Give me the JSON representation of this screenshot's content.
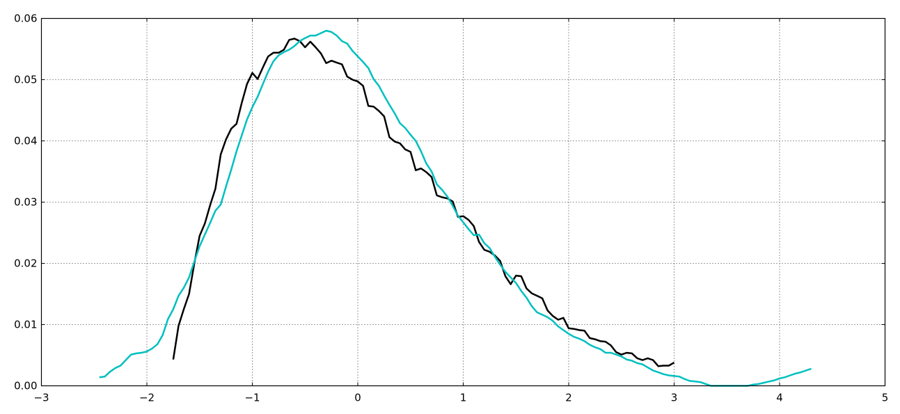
{
  "chart_data": {
    "type": "line",
    "title": "",
    "xlabel": "",
    "ylabel": "",
    "xlim": [
      -3,
      5
    ],
    "ylim": [
      0,
      0.06
    ],
    "grid": true,
    "xticks": [
      -3,
      -2,
      -1,
      0,
      1,
      2,
      3,
      4,
      5
    ],
    "xtick_labels": [
      "−3",
      "−2",
      "−1",
      "0",
      "1",
      "2",
      "3",
      "4",
      "5"
    ],
    "yticks": [
      0.0,
      0.01,
      0.02,
      0.03,
      0.04,
      0.05,
      0.06
    ],
    "ytick_labels": [
      "0.00",
      "0.01",
      "0.02",
      "0.03",
      "0.04",
      "0.05",
      "0.06"
    ],
    "series": [
      {
        "color": "#000000",
        "x": [
          -1.75,
          -1.7,
          -1.65,
          -1.6,
          -1.55,
          -1.5,
          -1.45,
          -1.4,
          -1.35,
          -1.3,
          -1.25,
          -1.2,
          -1.15,
          -1.1,
          -1.05,
          -1.0,
          -0.95,
          -0.9,
          -0.85,
          -0.8,
          -0.75,
          -0.7,
          -0.65,
          -0.6,
          -0.55,
          -0.5,
          -0.45,
          -0.4,
          -0.35,
          -0.3,
          -0.25,
          -0.2,
          -0.15,
          -0.1,
          -0.05,
          0.0,
          0.05,
          0.1,
          0.15,
          0.2,
          0.25,
          0.3,
          0.35,
          0.4,
          0.45,
          0.5,
          0.55,
          0.6,
          0.65,
          0.7,
          0.75,
          0.8,
          0.85,
          0.9,
          0.95,
          1.0,
          1.05,
          1.1,
          1.15,
          1.2,
          1.25,
          1.3,
          1.35,
          1.4,
          1.45,
          1.5,
          1.55,
          1.6,
          1.65,
          1.7,
          1.75,
          1.8,
          1.85,
          1.9,
          1.95,
          2.0,
          2.05,
          2.1,
          2.15,
          2.2,
          2.25,
          2.3,
          2.35,
          2.4,
          2.45,
          2.5,
          2.55,
          2.6,
          2.65,
          2.7,
          2.75,
          2.8,
          2.85,
          2.9,
          2.95,
          3.0
        ],
        "values": [
          0.0043,
          0.0098,
          0.0125,
          0.015,
          0.02,
          0.0245,
          0.0265,
          0.0295,
          0.0322,
          0.0378,
          0.0402,
          0.042,
          0.0428,
          0.0462,
          0.0493,
          0.0511,
          0.0501,
          0.052,
          0.0538,
          0.0544,
          0.0544,
          0.0549,
          0.0565,
          0.0567,
          0.0563,
          0.0553,
          0.0562,
          0.0553,
          0.0543,
          0.0527,
          0.0531,
          0.0528,
          0.0525,
          0.0505,
          0.05,
          0.0497,
          0.049,
          0.0457,
          0.0456,
          0.0449,
          0.044,
          0.0406,
          0.0399,
          0.0396,
          0.0386,
          0.0382,
          0.0352,
          0.0355,
          0.0349,
          0.0341,
          0.0311,
          0.0308,
          0.0306,
          0.0301,
          0.0276,
          0.0277,
          0.0271,
          0.0261,
          0.0235,
          0.0222,
          0.0219,
          0.0213,
          0.0204,
          0.0179,
          0.0166,
          0.018,
          0.0179,
          0.0159,
          0.0151,
          0.0147,
          0.0143,
          0.0123,
          0.0114,
          0.0108,
          0.0111,
          0.0094,
          0.0093,
          0.0091,
          0.009,
          0.0078,
          0.0076,
          0.0073,
          0.0072,
          0.0066,
          0.0055,
          0.0051,
          0.0054,
          0.0053,
          0.0045,
          0.0042,
          0.0045,
          0.0042,
          0.0032,
          0.0033,
          0.0033,
          0.0038
        ]
      },
      {
        "color": "#00bfbf",
        "x": [
          -2.45,
          -2.4,
          -2.35,
          -2.3,
          -2.25,
          -2.2,
          -2.15,
          -2.1,
          -2.05,
          -2.0,
          -1.95,
          -1.9,
          -1.85,
          -1.8,
          -1.75,
          -1.7,
          -1.65,
          -1.6,
          -1.55,
          -1.5,
          -1.45,
          -1.4,
          -1.35,
          -1.3,
          -1.25,
          -1.2,
          -1.15,
          -1.1,
          -1.05,
          -1.0,
          -0.95,
          -0.9,
          -0.85,
          -0.8,
          -0.75,
          -0.7,
          -0.65,
          -0.6,
          -0.55,
          -0.5,
          -0.45,
          -0.4,
          -0.35,
          -0.3,
          -0.25,
          -0.2,
          -0.15,
          -0.1,
          -0.05,
          0.0,
          0.05,
          0.1,
          0.15,
          0.2,
          0.25,
          0.3,
          0.35,
          0.4,
          0.45,
          0.5,
          0.55,
          0.6,
          0.65,
          0.7,
          0.75,
          0.8,
          0.85,
          0.9,
          0.95,
          1.0,
          1.05,
          1.1,
          1.15,
          1.2,
          1.25,
          1.3,
          1.35,
          1.4,
          1.45,
          1.5,
          1.55,
          1.6,
          1.65,
          1.7,
          1.75,
          1.8,
          1.85,
          1.9,
          1.95,
          2.0,
          2.05,
          2.1,
          2.15,
          2.2,
          2.25,
          2.3,
          2.35,
          2.4,
          2.45,
          2.5,
          2.55,
          2.6,
          2.65,
          2.7,
          2.75,
          2.8,
          2.85,
          2.9,
          2.95,
          3.0,
          3.05,
          3.1,
          3.15,
          3.2,
          3.25,
          3.3,
          3.35,
          3.4,
          3.45,
          3.5,
          3.55,
          3.6,
          3.65,
          3.7,
          3.75,
          3.8,
          3.85,
          3.9,
          3.95,
          4.0,
          4.05,
          4.1,
          4.15,
          4.2,
          4.25,
          4.3
        ],
        "values": [
          0.0014,
          0.0015,
          0.0023,
          0.0029,
          0.0033,
          0.0042,
          0.0051,
          0.0053,
          0.0054,
          0.0056,
          0.0061,
          0.0068,
          0.0083,
          0.0109,
          0.0125,
          0.0147,
          0.016,
          0.0177,
          0.0203,
          0.0228,
          0.0247,
          0.0266,
          0.0286,
          0.0296,
          0.0325,
          0.0353,
          0.0383,
          0.0409,
          0.0435,
          0.0455,
          0.0472,
          0.0493,
          0.0513,
          0.053,
          0.054,
          0.0545,
          0.0549,
          0.0555,
          0.0563,
          0.0568,
          0.0572,
          0.0572,
          0.0576,
          0.058,
          0.0578,
          0.0572,
          0.0563,
          0.0559,
          0.0547,
          0.0538,
          0.0529,
          0.0519,
          0.0501,
          0.049,
          0.0474,
          0.0459,
          0.0445,
          0.0429,
          0.0421,
          0.041,
          0.04,
          0.0383,
          0.0363,
          0.035,
          0.0329,
          0.032,
          0.0309,
          0.0294,
          0.0278,
          0.0267,
          0.0256,
          0.0246,
          0.0247,
          0.0233,
          0.0225,
          0.0211,
          0.0198,
          0.0186,
          0.0177,
          0.0168,
          0.0155,
          0.0144,
          0.013,
          0.012,
          0.0116,
          0.0112,
          0.0106,
          0.0097,
          0.0091,
          0.0085,
          0.008,
          0.0077,
          0.0073,
          0.0067,
          0.0063,
          0.006,
          0.0054,
          0.0054,
          0.0051,
          0.0048,
          0.0043,
          0.0041,
          0.0037,
          0.0035,
          0.003,
          0.0025,
          0.0022,
          0.0019,
          0.0017,
          0.0016,
          0.0015,
          0.0011,
          0.0008,
          0.0007,
          0.0006,
          0.0003,
          0.0,
          0.0,
          0.0,
          0.0,
          0.0,
          0.0,
          0.0,
          0.0,
          0.0002,
          0.0003,
          0.0005,
          0.0007,
          0.0009,
          0.0012,
          0.0014,
          0.0017,
          0.002,
          0.0022,
          0.0025,
          0.0028
        ]
      }
    ]
  }
}
